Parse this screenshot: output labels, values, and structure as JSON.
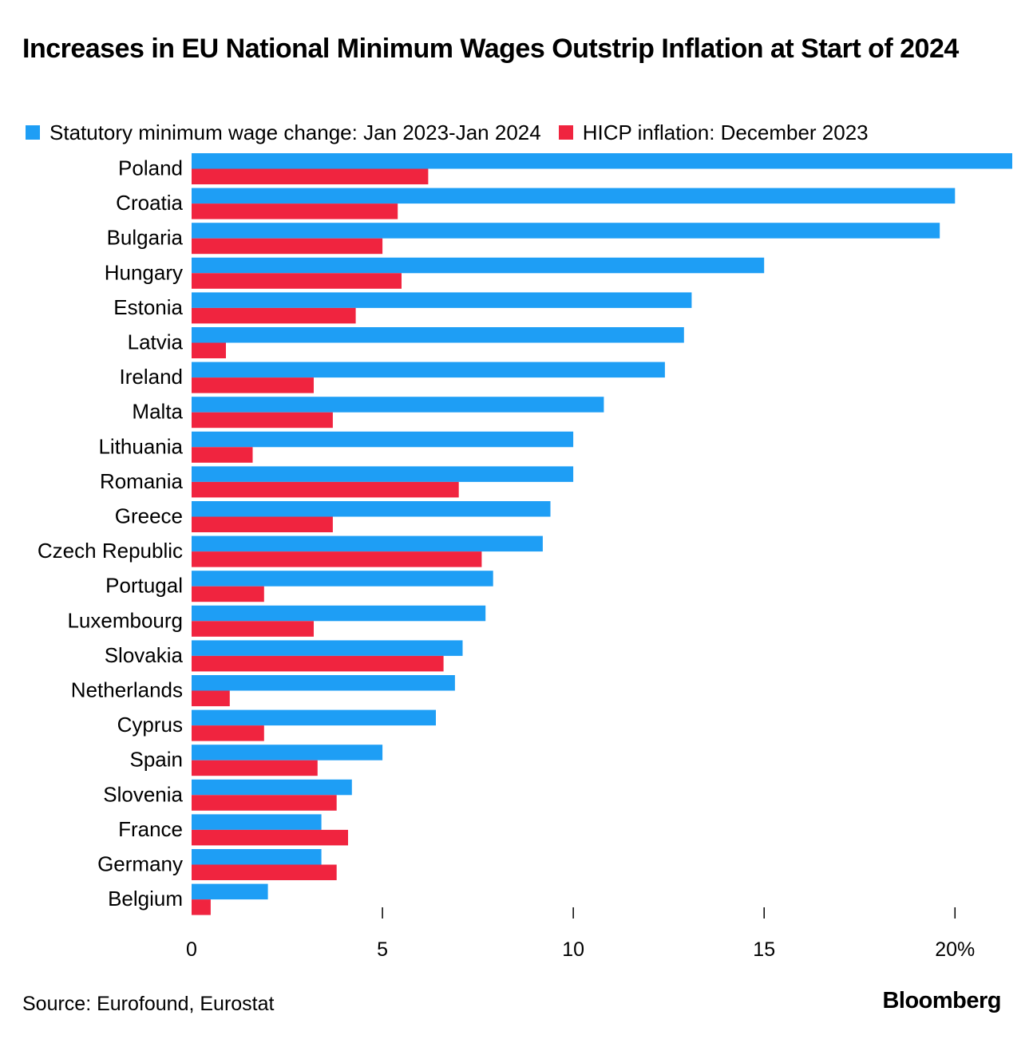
{
  "chart_data": {
    "type": "bar",
    "orientation": "horizontal",
    "title": "Increases in EU National Minimum Wages Outstrip Inflation at Start of 2024",
    "categories": [
      "Poland",
      "Croatia",
      "Bulgaria",
      "Hungary",
      "Estonia",
      "Latvia",
      "Ireland",
      "Malta",
      "Lithuania",
      "Romania",
      "Greece",
      "Czech Republic",
      "Portugal",
      "Luxembourg",
      "Slovakia",
      "Netherlands",
      "Cyprus",
      "Spain",
      "Slovenia",
      "France",
      "Germany",
      "Belgium"
    ],
    "series": [
      {
        "name": "Statutory minimum wage change: Jan 2023-Jan 2024",
        "color": "#1e9ef5",
        "values": [
          21.5,
          20.0,
          19.6,
          15.0,
          13.1,
          12.9,
          12.4,
          10.8,
          10.0,
          10.0,
          9.4,
          9.2,
          7.9,
          7.7,
          7.1,
          6.9,
          6.4,
          5.0,
          4.2,
          3.4,
          3.4,
          2.0
        ]
      },
      {
        "name": "HICP inflation: December 2023",
        "color": "#f0243f",
        "values": [
          6.2,
          5.4,
          5.0,
          5.5,
          4.3,
          0.9,
          3.2,
          3.7,
          1.6,
          7.0,
          3.7,
          7.6,
          1.9,
          3.2,
          6.6,
          1.0,
          1.9,
          3.3,
          3.8,
          4.1,
          3.8,
          0.5
        ]
      }
    ],
    "xlim": [
      0,
      21.5
    ],
    "xticks": [
      0,
      5,
      10,
      15,
      20
    ],
    "xtick_labels": [
      "0",
      "5",
      "10",
      "15",
      "20%"
    ],
    "xlabel": "",
    "ylabel": "",
    "grid": false,
    "legend_position": "top-left"
  },
  "source": "Source: Eurofound, Eurostat",
  "brand": "Bloomberg"
}
